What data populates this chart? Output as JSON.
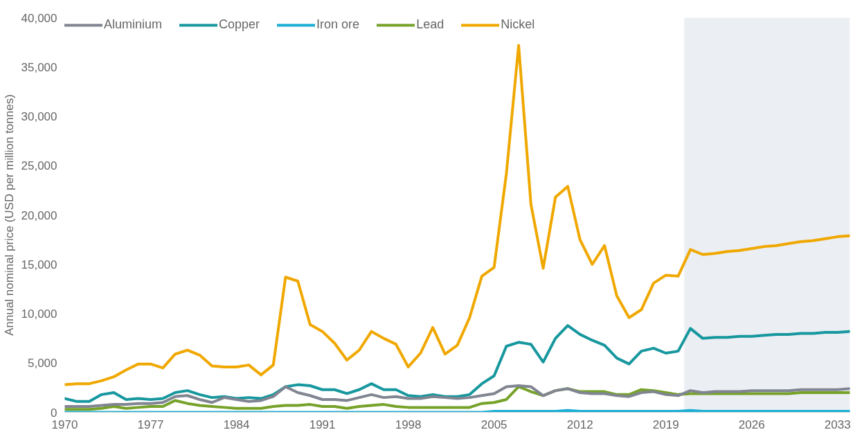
{
  "chart_data": {
    "type": "line",
    "ylabel": "Annual nominal price (USD per million tonnes)",
    "x": [
      1970,
      1971,
      1972,
      1973,
      1974,
      1975,
      1976,
      1977,
      1978,
      1979,
      1980,
      1981,
      1982,
      1983,
      1984,
      1985,
      1986,
      1987,
      1988,
      1989,
      1990,
      1991,
      1992,
      1993,
      1994,
      1995,
      1996,
      1997,
      1998,
      1999,
      2000,
      2001,
      2002,
      2003,
      2004,
      2005,
      2006,
      2007,
      2008,
      2009,
      2010,
      2011,
      2012,
      2013,
      2014,
      2015,
      2016,
      2017,
      2018,
      2019,
      2020,
      2021,
      2022,
      2023,
      2024,
      2025,
      2026,
      2027,
      2028,
      2029,
      2030,
      2031,
      2032,
      2033,
      2034
    ],
    "series": [
      {
        "name": "Aluminium",
        "color": "#808591",
        "values": [
          600,
          600,
          600,
          700,
          800,
          800,
          900,
          900,
          1000,
          1600,
          1700,
          1300,
          1000,
          1500,
          1300,
          1100,
          1200,
          1600,
          2600,
          2000,
          1700,
          1300,
          1300,
          1200,
          1500,
          1800,
          1500,
          1600,
          1400,
          1400,
          1600,
          1500,
          1400,
          1500,
          1700,
          1900,
          2600,
          2700,
          2600,
          1700,
          2200,
          2400,
          2000,
          1900,
          1900,
          1700,
          1600,
          2000,
          2100,
          1800,
          1700,
          2200,
          2000,
          2100,
          2100,
          2100,
          2200,
          2200,
          2200,
          2200,
          2300,
          2300,
          2300,
          2300,
          2400
        ]
      },
      {
        "name": "Copper",
        "color": "#17979e",
        "values": [
          1400,
          1100,
          1100,
          1800,
          2000,
          1300,
          1400,
          1300,
          1400,
          2000,
          2200,
          1800,
          1500,
          1600,
          1400,
          1500,
          1400,
          1800,
          2600,
          2800,
          2700,
          2300,
          2300,
          1900,
          2300,
          2900,
          2300,
          2300,
          1700,
          1600,
          1800,
          1600,
          1600,
          1800,
          2900,
          3700,
          6700,
          7100,
          6900,
          5100,
          7500,
          8800,
          7900,
          7300,
          6800,
          5500,
          4900,
          6200,
          6500,
          6000,
          6200,
          8500,
          7500,
          7600,
          7600,
          7700,
          7700,
          7800,
          7900,
          7900,
          8000,
          8000,
          8100,
          8100,
          8200
        ]
      },
      {
        "name": "Iron ore",
        "color": "#1aaed4",
        "values": [
          0,
          0,
          0,
          0,
          0,
          0,
          0,
          0,
          0,
          0,
          0,
          0,
          0,
          0,
          0,
          0,
          0,
          0,
          0,
          0,
          0,
          0,
          0,
          0,
          0,
          0,
          0,
          0,
          0,
          0,
          0,
          0,
          0,
          0,
          0,
          100,
          100,
          100,
          100,
          100,
          100,
          200,
          100,
          100,
          100,
          100,
          100,
          100,
          100,
          100,
          100,
          200,
          100,
          100,
          100,
          100,
          100,
          100,
          100,
          100,
          100,
          100,
          100,
          100,
          100
        ]
      },
      {
        "name": "Lead",
        "color": "#76a22a",
        "values": [
          300,
          300,
          300,
          400,
          600,
          400,
          500,
          600,
          600,
          1200,
          900,
          700,
          600,
          500,
          400,
          400,
          400,
          600,
          700,
          700,
          800,
          600,
          600,
          400,
          600,
          700,
          800,
          600,
          500,
          500,
          500,
          500,
          500,
          500,
          900,
          1000,
          1300,
          2600,
          2100,
          1700,
          2200,
          2400,
          2100,
          2100,
          2100,
          1800,
          1800,
          2300,
          2200,
          2000,
          1800,
          1900,
          1900,
          1900,
          1900,
          1900,
          1900,
          1900,
          1900,
          1900,
          2000,
          2000,
          2000,
          2000,
          2000
        ]
      },
      {
        "name": "Nickel",
        "color": "#f0a800",
        "values": [
          2800,
          2900,
          2900,
          3200,
          3600,
          4300,
          4900,
          4900,
          4500,
          5900,
          6300,
          5800,
          4700,
          4600,
          4600,
          4800,
          3800,
          4800,
          13700,
          13300,
          8900,
          8200,
          7000,
          5300,
          6300,
          8200,
          7500,
          6900,
          4600,
          6000,
          8600,
          5900,
          6800,
          9600,
          13800,
          14700,
          24200,
          37200,
          21100,
          14600,
          21800,
          22900,
          17500,
          15000,
          16900,
          11800,
          9600,
          10400,
          13100,
          13900,
          13800,
          16500,
          16000,
          16100,
          16300,
          16400,
          16600,
          16800,
          16900,
          17100,
          17300,
          17400,
          17600,
          17800,
          17900
        ]
      }
    ],
    "xlim": [
      1970,
      2034
    ],
    "xticks": [
      1970,
      1977,
      1984,
      1991,
      1998,
      2005,
      2012,
      2019,
      2026,
      2033
    ],
    "ylim": [
      0,
      40000
    ],
    "yticks": [
      {
        "value": 0,
        "label": "0"
      },
      {
        "value": 5000,
        "label": "5,000"
      },
      {
        "value": 10000,
        "label": "10,000"
      },
      {
        "value": 15000,
        "label": "15,000"
      },
      {
        "value": 20000,
        "label": "20,000"
      },
      {
        "value": 25000,
        "label": "25,000"
      },
      {
        "value": 30000,
        "label": "30,000"
      },
      {
        "value": 35000,
        "label": "35,000"
      },
      {
        "value": 40000,
        "label": "40,000"
      }
    ],
    "bands": [
      {
        "axis": "x",
        "from": 2020.5,
        "to": 2034,
        "color": "#ebeef2"
      }
    ],
    "legend": "top left",
    "grid": false,
    "marker": "none",
    "line_style": "solid"
  }
}
